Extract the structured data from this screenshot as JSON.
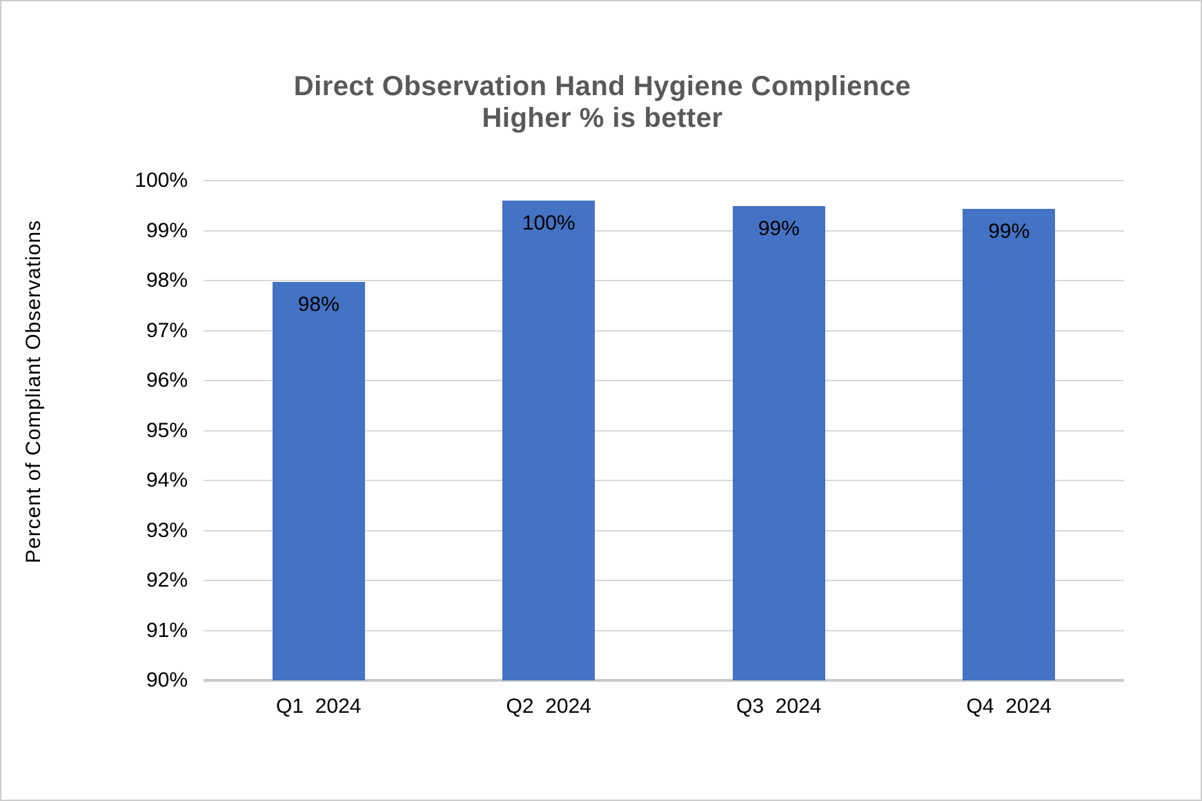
{
  "window": {
    "background": "#ffffff",
    "border_color": "#cdcdcd"
  },
  "chart_data": {
    "type": "bar",
    "title": "Direct Observation Hand Hygiene Complience",
    "subtitle": "Higher % is better",
    "ylabel": "Percent of Compliant Observations",
    "xlabel": "",
    "categories": [
      "Q1  2024",
      "Q2  2024",
      "Q3  2024",
      "Q4  2024"
    ],
    "values": [
      98,
      100,
      99,
      99
    ],
    "bar_labels": [
      "98%",
      "100%",
      "99%",
      "99%"
    ],
    "plotted_values": [
      97.97,
      99.6,
      99.49,
      99.43
    ],
    "ylim": [
      90,
      100
    ],
    "ytick_step": 1,
    "ytick_labels": [
      "100%",
      "99%",
      "98%",
      "97%",
      "96%",
      "95%",
      "94%",
      "93%",
      "92%",
      "91%",
      "90%"
    ],
    "grid": true,
    "legend": false,
    "bar_color": "#4472C4",
    "gridline_color": "#d9d9d9",
    "baseline_color": "#c9c9c9",
    "title_color": "#595959",
    "axis_text_color": "#000000"
  }
}
